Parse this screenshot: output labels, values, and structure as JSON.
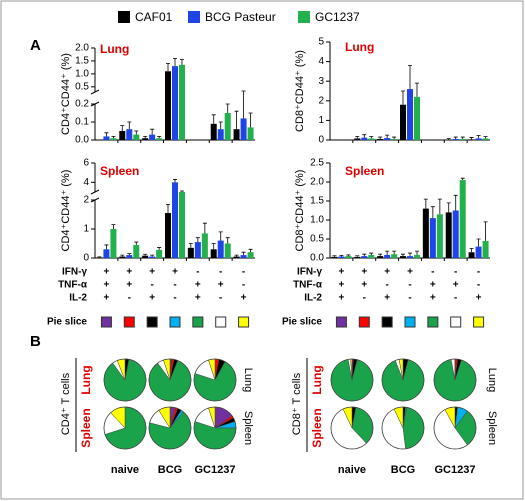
{
  "panel_labels": [
    "A",
    "B"
  ],
  "legend": [
    {
      "name": "CAF01",
      "color": "#000000"
    },
    {
      "name": "BCG Pasteur",
      "color": "#1f45e6"
    },
    {
      "name": "GC1237",
      "color": "#22b14c"
    }
  ],
  "combinations": [
    {
      "label": "IFN-γ",
      "signs": [
        "+",
        "+",
        "+",
        "+",
        "-",
        "-",
        "-"
      ]
    },
    {
      "label": "TNF-α",
      "signs": [
        "+",
        "+",
        "-",
        "-",
        "+",
        "+",
        "-"
      ]
    },
    {
      "label": "IL-2",
      "signs": [
        "+",
        "-",
        "+",
        "-",
        "+",
        "-",
        "+"
      ]
    }
  ],
  "pie_slice": {
    "label": "Pie slice",
    "colors": [
      "#7030a0",
      "#ff0000",
      "#000000",
      "#00b0f0",
      "#1aa34a",
      "#ffffff",
      "#ffff00"
    ]
  },
  "chart_data": [
    {
      "type": "bar",
      "title": "Lung",
      "ylabel": "CD4⁺CD44⁺ (%)",
      "ylim": [
        0,
        2.0
      ],
      "ybreak": [
        0.2,
        0.3
      ],
      "yticks": [
        {
          "value": 0,
          "label": "0.0"
        },
        0.1,
        0.2,
        0.5,
        {
          "value": 1,
          "label": "1.0"
        },
        1.5,
        {
          "value": 2,
          "label": "2.0"
        }
      ],
      "series": [
        {
          "values": [
            0,
            0.05,
            0.01,
            1.1,
            0,
            0.09,
            0.06
          ],
          "errors": [
            0,
            0.03,
            0.01,
            0.3,
            0,
            0.05,
            0.1
          ]
        },
        {
          "values": [
            0.02,
            0.06,
            0.03,
            1.3,
            0,
            0.06,
            0.12
          ],
          "errors": [
            0.02,
            0.04,
            0.03,
            0.3,
            0,
            0.04,
            0.22
          ]
        },
        {
          "values": [
            0.01,
            0.03,
            0.01,
            1.35,
            0,
            0.15,
            0.07
          ],
          "errors": [
            0.01,
            0.02,
            0.01,
            0.2,
            0,
            0.05,
            0.08
          ]
        }
      ]
    },
    {
      "type": "bar",
      "title": "Lung",
      "ylabel": "CD8⁺CD44⁺ (%)",
      "ylim": [
        0,
        5
      ],
      "yticks": [
        0,
        1,
        2,
        3,
        4,
        5
      ],
      "series": [
        {
          "values": [
            0,
            0.08,
            0.05,
            1.8,
            0,
            0.02,
            0.03
          ],
          "errors": [
            0,
            0.1,
            0.1,
            0.7,
            0,
            0.05,
            0.1
          ]
        },
        {
          "values": [
            0,
            0.12,
            0.1,
            2.6,
            0,
            0.05,
            0.08
          ],
          "errors": [
            0,
            0.15,
            0.15,
            1.2,
            0,
            0.1,
            0.15
          ]
        },
        {
          "values": [
            0,
            0.08,
            0.05,
            2.2,
            0,
            0.05,
            0.08
          ],
          "errors": [
            0,
            0.1,
            0.1,
            0.7,
            0,
            0.1,
            0.1
          ]
        }
      ]
    },
    {
      "type": "bar",
      "title": "Spleen",
      "ylabel": "CD4⁺CD44⁺ (%)",
      "ylim": [
        0,
        6
      ],
      "ybreak": [
        2,
        3
      ],
      "yticks": [
        0,
        1,
        2,
        4,
        6
      ],
      "series": [
        {
          "values": [
            0.02,
            0.05,
            0.08,
            1.55,
            0.35,
            0.3,
            0.05
          ],
          "errors": [
            0.02,
            0.05,
            0.05,
            0.3,
            0.15,
            0.2,
            0.05
          ]
        },
        {
          "values": [
            0.3,
            0.1,
            0.05,
            4.0,
            0.55,
            0.6,
            0.1
          ],
          "errors": [
            0.15,
            0.05,
            0.05,
            0.3,
            0.15,
            0.3,
            0.1
          ]
        },
        {
          "values": [
            1.0,
            0.45,
            0.28,
            3.0,
            0.85,
            0.5,
            0.2
          ],
          "errors": [
            0.15,
            0.1,
            0.08,
            0.1,
            0.35,
            0.2,
            0.1
          ]
        }
      ]
    },
    {
      "type": "bar",
      "title": "Spleen",
      "ylabel": "CD8⁺CD44⁺ (%)",
      "ylim": [
        0,
        2.5
      ],
      "yticks": [
        {
          "value": 0,
          "label": "0.0"
        },
        0.5,
        {
          "value": 1,
          "label": "1.0"
        },
        1.5,
        {
          "value": 2,
          "label": "2.0"
        },
        2.5
      ],
      "series": [
        {
          "values": [
            0.03,
            0.03,
            0.05,
            0.05,
            1.3,
            1.2,
            0.15
          ],
          "errors": [
            0.03,
            0.03,
            0.05,
            0.05,
            0.25,
            0.25,
            0.1
          ]
        },
        {
          "values": [
            0.04,
            0.05,
            0.08,
            0.05,
            1.05,
            1.25,
            0.3
          ],
          "errors": [
            0.03,
            0.05,
            0.1,
            0.08,
            0.3,
            0.4,
            0.2
          ]
        },
        {
          "values": [
            0.05,
            0.08,
            0.1,
            0.08,
            1.15,
            2.05,
            0.45
          ],
          "errors": [
            0.03,
            0.05,
            0.08,
            0.1,
            0.4,
            0.05,
            0.5
          ]
        }
      ]
    },
    {
      "type": "pie",
      "cell_label": "CD4⁺ T cells",
      "groups": [
        "naive",
        "BCG",
        "GC1237"
      ],
      "rows": [
        {
          "tissue": "Lung",
          "values": [
            [
              0,
              0,
              3,
              0,
              87,
              4,
              6
            ],
            [
              1,
              2,
              3,
              0,
              84,
              5,
              5
            ],
            [
              0,
              3,
              5,
              0,
              72,
              15,
              5
            ]
          ]
        },
        {
          "tissue": "Spleen",
          "values": [
            [
              0,
              0,
              0,
              0,
              70,
              18,
              12
            ],
            [
              4,
              2,
              3,
              2,
              68,
              12,
              9
            ],
            [
              15,
              2,
              3,
              5,
              55,
              15,
              5
            ]
          ]
        }
      ]
    },
    {
      "type": "pie",
      "cell_label": "CD8⁺ T cells",
      "groups": [
        "naive",
        "BCG",
        "GC1237"
      ],
      "rows": [
        {
          "tissue": "Lung",
          "values": [
            [
              0,
              1,
              3,
              0,
              93,
              2,
              1
            ],
            [
              0,
              0,
              4,
              0,
              90,
              3,
              3
            ],
            [
              0,
              2,
              3,
              0,
              92,
              3,
              0
            ]
          ]
        },
        {
          "tissue": "Spleen",
          "values": [
            [
              0,
              0,
              3,
              0,
              35,
              55,
              7
            ],
            [
              0,
              0,
              2,
              1,
              45,
              45,
              7
            ],
            [
              0,
              0,
              2,
              8,
              30,
              52,
              8
            ]
          ]
        }
      ]
    }
  ]
}
